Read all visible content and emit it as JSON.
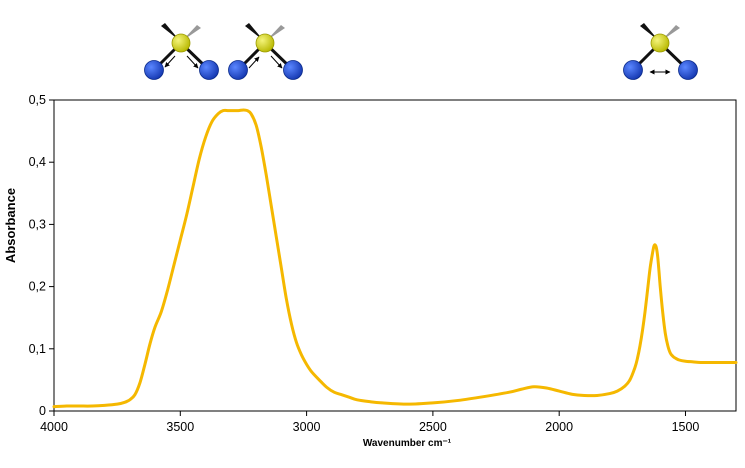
{
  "chart_data": {
    "type": "line",
    "title": "",
    "xlabel": "Wavenumber cm⁻¹",
    "ylabel": "Absorbance",
    "x_reversed": true,
    "xlim": [
      4000,
      1300
    ],
    "ylim": [
      0,
      0.5
    ],
    "x_ticks": [
      4000,
      3500,
      3000,
      2500,
      2000,
      1500
    ],
    "x_tick_labels": [
      "4000",
      "3500",
      "3000",
      "2500",
      "2000",
      "1500"
    ],
    "y_ticks": [
      0,
      0.1,
      0.2,
      0.3,
      0.4,
      0.5
    ],
    "y_tick_labels": [
      "0",
      "0,1",
      "0,2",
      "0,3",
      "0,4",
      "0,5"
    ],
    "grid": false,
    "legend": "none",
    "series": [
      {
        "color": "#f5b800",
        "x": [
          4000,
          3950,
          3900,
          3850,
          3800,
          3750,
          3720,
          3700,
          3680,
          3660,
          3640,
          3620,
          3600,
          3575,
          3550,
          3525,
          3500,
          3475,
          3450,
          3425,
          3400,
          3375,
          3350,
          3330,
          3310,
          3290,
          3270,
          3250,
          3235,
          3220,
          3200,
          3180,
          3160,
          3140,
          3120,
          3100,
          3080,
          3060,
          3040,
          3020,
          3000,
          2980,
          2950,
          2920,
          2890,
          2860,
          2830,
          2800,
          2750,
          2700,
          2600,
          2500,
          2400,
          2300,
          2200,
          2150,
          2100,
          2050,
          2000,
          1950,
          1900,
          1850,
          1800,
          1770,
          1740,
          1720,
          1700,
          1690,
          1680,
          1670,
          1660,
          1650,
          1640,
          1630,
          1625,
          1620,
          1615,
          1610,
          1605,
          1600,
          1590,
          1580,
          1570,
          1560,
          1550,
          1540,
          1525,
          1500,
          1470,
          1440,
          1400,
          1350,
          1300
        ],
        "y": [
          0.007,
          0.008,
          0.008,
          0.008,
          0.009,
          0.011,
          0.014,
          0.018,
          0.026,
          0.045,
          0.075,
          0.108,
          0.135,
          0.16,
          0.195,
          0.235,
          0.275,
          0.315,
          0.36,
          0.405,
          0.44,
          0.465,
          0.478,
          0.483,
          0.483,
          0.483,
          0.483,
          0.484,
          0.483,
          0.478,
          0.46,
          0.425,
          0.38,
          0.33,
          0.28,
          0.23,
          0.18,
          0.14,
          0.11,
          0.09,
          0.075,
          0.063,
          0.05,
          0.038,
          0.03,
          0.026,
          0.022,
          0.018,
          0.015,
          0.013,
          0.011,
          0.013,
          0.017,
          0.023,
          0.03,
          0.035,
          0.039,
          0.037,
          0.032,
          0.027,
          0.025,
          0.025,
          0.028,
          0.032,
          0.04,
          0.05,
          0.07,
          0.085,
          0.105,
          0.13,
          0.16,
          0.195,
          0.23,
          0.255,
          0.265,
          0.267,
          0.262,
          0.248,
          0.225,
          0.2,
          0.158,
          0.125,
          0.105,
          0.093,
          0.088,
          0.085,
          0.082,
          0.08,
          0.079,
          0.078,
          0.078,
          0.078,
          0.078
        ]
      }
    ]
  },
  "illustration": {
    "atom_colors": {
      "center": "#c8c800",
      "center_edge": "#9a9a00",
      "side": "#1f4fd8",
      "side_edge": "#0a2a8a",
      "bond": "#111111",
      "wedge_dark": "#111111",
      "wedge_light": "#999999"
    },
    "molecules": [
      {
        "mode": "symmetric-stretch-icon"
      },
      {
        "mode": "asymmetric-stretch-icon"
      },
      {
        "mode": "bending-icon"
      }
    ]
  }
}
